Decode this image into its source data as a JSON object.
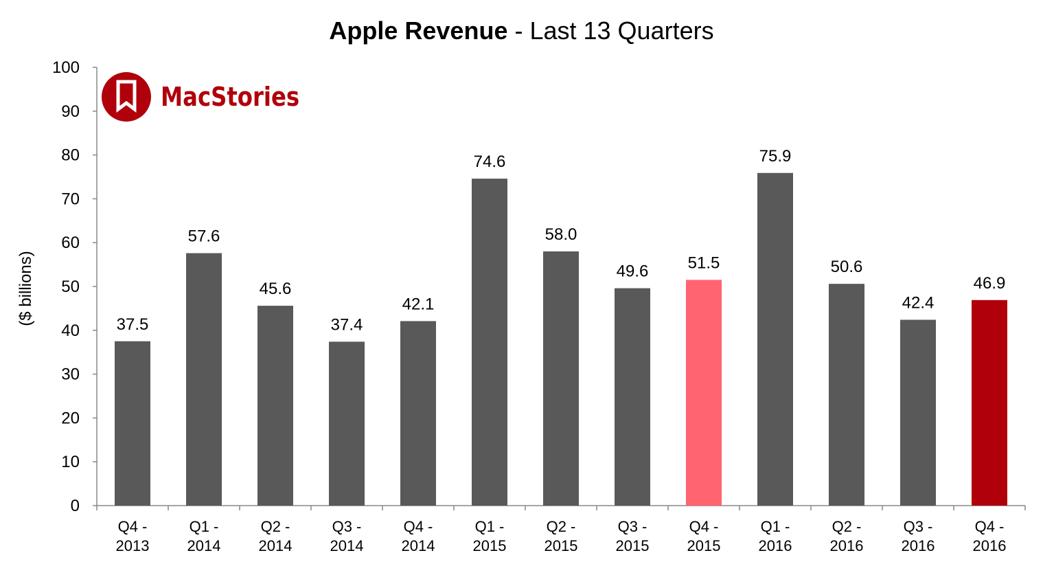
{
  "chart_data": {
    "type": "bar",
    "title_bold": "Apple Revenue",
    "title_rest": " - Last 13 Quarters",
    "ylabel": "($ billions)",
    "xlabel": "",
    "ylim": [
      0,
      100
    ],
    "yticks": [
      0,
      10,
      20,
      30,
      40,
      50,
      60,
      70,
      80,
      90,
      100
    ],
    "grid": false,
    "categories": [
      [
        "Q4 -",
        "2013"
      ],
      [
        "Q1 -",
        "2014"
      ],
      [
        "Q2 -",
        "2014"
      ],
      [
        "Q3 -",
        "2014"
      ],
      [
        "Q4 -",
        "2014"
      ],
      [
        "Q1 -",
        "2015"
      ],
      [
        "Q2 -",
        "2015"
      ],
      [
        "Q3 -",
        "2015"
      ],
      [
        "Q4 -",
        "2015"
      ],
      [
        "Q1 -",
        "2016"
      ],
      [
        "Q2 -",
        "2016"
      ],
      [
        "Q3 -",
        "2016"
      ],
      [
        "Q4 -",
        "2016"
      ]
    ],
    "values": [
      37.5,
      57.6,
      45.6,
      37.4,
      42.1,
      74.6,
      58.0,
      49.6,
      51.5,
      75.9,
      50.6,
      42.4,
      46.9
    ],
    "data_labels": [
      "37.5",
      "57.6",
      "45.6",
      "37.4",
      "42.1",
      "74.6",
      "58.0",
      "49.6",
      "51.5",
      "75.9",
      "50.6",
      "42.4",
      "46.9"
    ],
    "colors": [
      "#595959",
      "#595959",
      "#595959",
      "#595959",
      "#595959",
      "#595959",
      "#595959",
      "#595959",
      "#ff6470",
      "#595959",
      "#595959",
      "#595959",
      "#b0000b"
    ]
  },
  "logo": {
    "text": "MacStories",
    "color": "#b0000b"
  }
}
